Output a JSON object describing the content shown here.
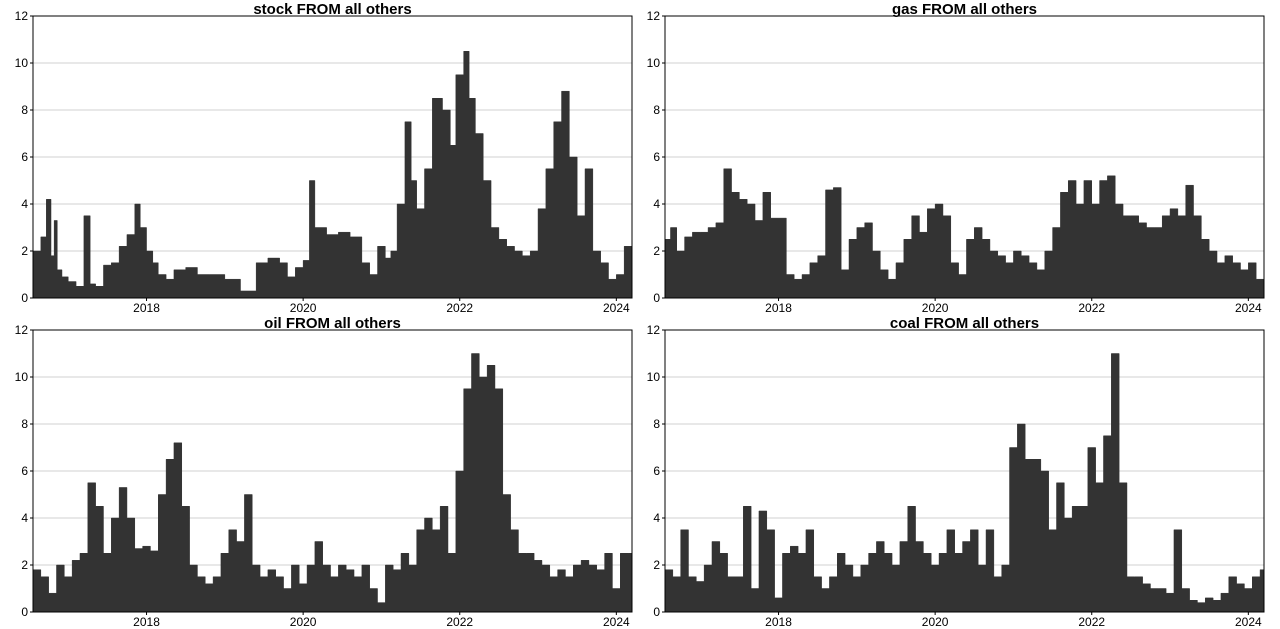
{
  "chart_data": [
    {
      "type": "area",
      "title": "stock FROM all others",
      "xlabel": "",
      "ylabel": "",
      "xlim": [
        2016.55,
        2024.2
      ],
      "ylim": [
        0,
        12
      ],
      "y_ticks": [
        0,
        2,
        4,
        6,
        8,
        10,
        12
      ],
      "x_ticks": [
        2018,
        2020,
        2022,
        2024
      ],
      "grid": "horizontal",
      "x": [
        2016.55,
        2016.65,
        2016.72,
        2016.78,
        2016.82,
        2016.86,
        2016.92,
        2017.0,
        2017.1,
        2017.2,
        2017.28,
        2017.35,
        2017.45,
        2017.55,
        2017.65,
        2017.75,
        2017.85,
        2017.92,
        2018.0,
        2018.08,
        2018.15,
        2018.25,
        2018.35,
        2018.5,
        2018.65,
        2018.8,
        2019.0,
        2019.2,
        2019.4,
        2019.55,
        2019.7,
        2019.8,
        2019.9,
        2020.0,
        2020.08,
        2020.15,
        2020.3,
        2020.45,
        2020.6,
        2020.75,
        2020.85,
        2020.95,
        2021.05,
        2021.12,
        2021.2,
        2021.3,
        2021.38,
        2021.45,
        2021.55,
        2021.65,
        2021.78,
        2021.88,
        2021.95,
        2022.05,
        2022.12,
        2022.2,
        2022.3,
        2022.4,
        2022.5,
        2022.6,
        2022.7,
        2022.8,
        2022.9,
        2023.0,
        2023.1,
        2023.2,
        2023.3,
        2023.4,
        2023.5,
        2023.6,
        2023.7,
        2023.8,
        2023.9,
        2024.0,
        2024.1,
        2024.2
      ],
      "values": [
        2.0,
        2.6,
        4.2,
        1.8,
        3.3,
        1.2,
        0.9,
        0.7,
        0.5,
        3.5,
        0.6,
        0.5,
        1.4,
        1.5,
        2.2,
        2.7,
        4.0,
        3.0,
        2.0,
        1.5,
        1.0,
        0.8,
        1.2,
        1.3,
        1.0,
        1.0,
        0.8,
        0.3,
        1.5,
        1.7,
        1.5,
        0.9,
        1.3,
        1.6,
        5.0,
        3.0,
        2.7,
        2.8,
        2.6,
        1.5,
        1.0,
        2.2,
        1.7,
        2.0,
        4.0,
        7.5,
        5.0,
        3.8,
        5.5,
        8.5,
        8.0,
        6.5,
        9.5,
        10.5,
        8.5,
        7.0,
        5.0,
        3.0,
        2.5,
        2.2,
        2.0,
        1.8,
        2.0,
        3.8,
        5.5,
        7.5,
        8.8,
        6.0,
        3.5,
        5.5,
        2.0,
        1.5,
        0.8,
        1.0,
        2.2,
        2.9
      ]
    },
    {
      "type": "area",
      "title": "gas FROM all others",
      "xlabel": "",
      "ylabel": "",
      "xlim": [
        2016.55,
        2024.2
      ],
      "ylim": [
        0,
        12
      ],
      "y_ticks": [
        0,
        2,
        4,
        6,
        8,
        10,
        12
      ],
      "x_ticks": [
        2018,
        2020,
        2022,
        2024
      ],
      "grid": "horizontal",
      "x": [
        2016.55,
        2016.62,
        2016.7,
        2016.8,
        2016.9,
        2017.0,
        2017.1,
        2017.2,
        2017.3,
        2017.4,
        2017.5,
        2017.6,
        2017.7,
        2017.8,
        2017.9,
        2018.0,
        2018.1,
        2018.2,
        2018.3,
        2018.4,
        2018.5,
        2018.6,
        2018.7,
        2018.8,
        2018.9,
        2019.0,
        2019.1,
        2019.2,
        2019.3,
        2019.4,
        2019.5,
        2019.6,
        2019.7,
        2019.8,
        2019.9,
        2020.0,
        2020.1,
        2020.2,
        2020.3,
        2020.4,
        2020.5,
        2020.6,
        2020.7,
        2020.8,
        2020.9,
        2021.0,
        2021.1,
        2021.2,
        2021.3,
        2021.4,
        2021.5,
        2021.6,
        2021.7,
        2021.8,
        2021.9,
        2022.0,
        2022.1,
        2022.2,
        2022.3,
        2022.4,
        2022.5,
        2022.6,
        2022.7,
        2022.8,
        2022.9,
        2023.0,
        2023.1,
        2023.2,
        2023.3,
        2023.4,
        2023.5,
        2023.6,
        2023.7,
        2023.8,
        2023.9,
        2024.0,
        2024.1,
        2024.2
      ],
      "values": [
        2.5,
        3.0,
        2.0,
        2.6,
        2.8,
        2.8,
        3.0,
        3.2,
        5.5,
        4.5,
        4.2,
        4.0,
        3.3,
        4.5,
        3.4,
        3.4,
        1.0,
        0.8,
        1.0,
        1.5,
        1.8,
        4.6,
        4.7,
        1.2,
        2.5,
        3.0,
        3.2,
        2.0,
        1.2,
        0.8,
        1.5,
        2.5,
        3.5,
        2.8,
        3.8,
        4.0,
        3.5,
        1.5,
        1.0,
        2.5,
        3.0,
        2.5,
        2.0,
        1.8,
        1.5,
        2.0,
        1.8,
        1.5,
        1.2,
        2.0,
        3.0,
        4.5,
        5.0,
        4.0,
        5.0,
        4.0,
        5.0,
        5.2,
        4.0,
        3.5,
        3.5,
        3.2,
        3.0,
        3.0,
        3.5,
        3.8,
        3.5,
        4.8,
        3.5,
        2.5,
        2.0,
        1.5,
        1.8,
        1.5,
        1.2,
        1.5,
        0.8,
        0.5
      ]
    },
    {
      "type": "area",
      "title": "oil FROM all others",
      "xlabel": "",
      "ylabel": "",
      "xlim": [
        2016.55,
        2024.2
      ],
      "ylim": [
        0,
        12
      ],
      "y_ticks": [
        0,
        2,
        4,
        6,
        8,
        10,
        12
      ],
      "x_ticks": [
        2018,
        2020,
        2022,
        2024
      ],
      "grid": "horizontal",
      "x": [
        2016.55,
        2016.65,
        2016.75,
        2016.85,
        2016.95,
        2017.05,
        2017.15,
        2017.25,
        2017.35,
        2017.45,
        2017.55,
        2017.65,
        2017.75,
        2017.85,
        2017.95,
        2018.05,
        2018.15,
        2018.25,
        2018.35,
        2018.45,
        2018.55,
        2018.65,
        2018.75,
        2018.85,
        2018.95,
        2019.05,
        2019.15,
        2019.25,
        2019.35,
        2019.45,
        2019.55,
        2019.65,
        2019.75,
        2019.85,
        2019.95,
        2020.05,
        2020.15,
        2020.25,
        2020.35,
        2020.45,
        2020.55,
        2020.65,
        2020.75,
        2020.85,
        2020.95,
        2021.05,
        2021.15,
        2021.25,
        2021.35,
        2021.45,
        2021.55,
        2021.65,
        2021.75,
        2021.85,
        2021.95,
        2022.05,
        2022.15,
        2022.25,
        2022.35,
        2022.45,
        2022.55,
        2022.65,
        2022.75,
        2022.85,
        2022.95,
        2023.05,
        2023.15,
        2023.25,
        2023.35,
        2023.45,
        2023.55,
        2023.65,
        2023.75,
        2023.85,
        2023.95,
        2024.05,
        2024.15,
        2024.2
      ],
      "values": [
        1.8,
        1.5,
        0.8,
        2.0,
        1.5,
        2.2,
        2.5,
        5.5,
        4.5,
        2.5,
        4.0,
        5.3,
        4.0,
        2.7,
        2.8,
        2.6,
        5.0,
        6.5,
        7.2,
        4.5,
        2.0,
        1.5,
        1.2,
        1.5,
        2.5,
        3.5,
        3.0,
        5.0,
        2.0,
        1.5,
        1.8,
        1.5,
        1.0,
        2.0,
        1.2,
        2.0,
        3.0,
        2.0,
        1.5,
        2.0,
        1.8,
        1.5,
        2.0,
        1.0,
        0.4,
        2.0,
        1.8,
        2.5,
        2.0,
        3.5,
        4.0,
        3.5,
        4.5,
        2.5,
        6.0,
        9.5,
        11.0,
        10.0,
        10.5,
        9.5,
        5.0,
        3.5,
        2.5,
        2.5,
        2.2,
        2.0,
        1.5,
        1.8,
        1.5,
        2.0,
        2.2,
        2.0,
        1.8,
        2.5,
        1.0,
        2.5,
        2.5,
        2.5
      ]
    },
    {
      "type": "area",
      "title": "coal FROM all others",
      "xlabel": "",
      "ylabel": "",
      "xlim": [
        2016.55,
        2024.2
      ],
      "ylim": [
        0,
        12
      ],
      "y_ticks": [
        0,
        2,
        4,
        6,
        8,
        10,
        12
      ],
      "x_ticks": [
        2018,
        2020,
        2022,
        2024
      ],
      "grid": "horizontal",
      "x": [
        2016.55,
        2016.65,
        2016.75,
        2016.85,
        2016.95,
        2017.05,
        2017.15,
        2017.25,
        2017.35,
        2017.45,
        2017.55,
        2017.65,
        2017.75,
        2017.85,
        2017.95,
        2018.05,
        2018.15,
        2018.25,
        2018.35,
        2018.45,
        2018.55,
        2018.65,
        2018.75,
        2018.85,
        2018.95,
        2019.05,
        2019.15,
        2019.25,
        2019.35,
        2019.45,
        2019.55,
        2019.65,
        2019.75,
        2019.85,
        2019.95,
        2020.05,
        2020.15,
        2020.25,
        2020.35,
        2020.45,
        2020.55,
        2020.65,
        2020.75,
        2020.85,
        2020.95,
        2021.05,
        2021.15,
        2021.25,
        2021.35,
        2021.45,
        2021.55,
        2021.65,
        2021.75,
        2021.85,
        2021.95,
        2022.05,
        2022.15,
        2022.25,
        2022.35,
        2022.45,
        2022.55,
        2022.65,
        2022.75,
        2022.85,
        2022.95,
        2023.05,
        2023.15,
        2023.25,
        2023.35,
        2023.45,
        2023.55,
        2023.65,
        2023.75,
        2023.85,
        2023.95,
        2024.05,
        2024.15,
        2024.2
      ],
      "values": [
        1.8,
        1.5,
        3.5,
        1.5,
        1.3,
        2.0,
        3.0,
        2.5,
        1.5,
        1.5,
        4.5,
        1.0,
        4.3,
        3.5,
        0.6,
        2.5,
        2.8,
        2.5,
        3.5,
        1.5,
        1.0,
        1.5,
        2.5,
        2.0,
        1.5,
        2.0,
        2.5,
        3.0,
        2.5,
        2.0,
        3.0,
        4.5,
        3.0,
        2.5,
        2.0,
        2.5,
        3.5,
        2.5,
        3.0,
        3.5,
        2.0,
        3.5,
        1.5,
        2.0,
        7.0,
        8.0,
        6.5,
        6.5,
        6.0,
        3.5,
        5.5,
        4.0,
        4.5,
        4.5,
        7.0,
        5.5,
        7.5,
        11.0,
        5.5,
        1.5,
        1.5,
        1.2,
        1.0,
        1.0,
        0.8,
        3.5,
        1.0,
        0.5,
        0.4,
        0.6,
        0.5,
        0.8,
        1.5,
        1.2,
        1.0,
        1.5,
        1.8,
        1.2
      ]
    }
  ],
  "colors": {
    "fill": "#333333",
    "grid": "#d0d0d0",
    "axis": "#000000"
  }
}
